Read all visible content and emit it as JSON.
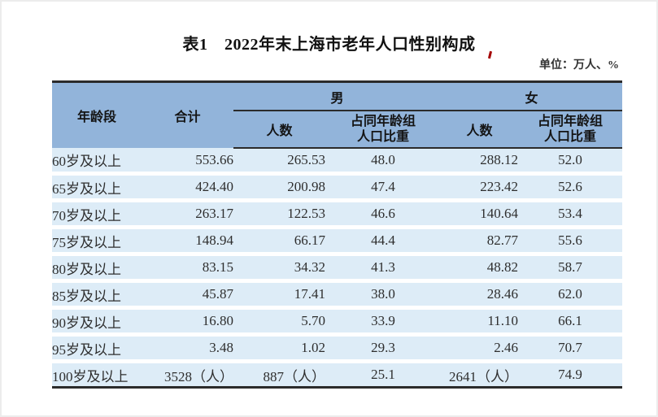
{
  "page": {
    "title": "表1　2022年末上海市老年人口性别构成",
    "unit_note": "单位：万人、%"
  },
  "table": {
    "header": {
      "age_group": "年龄段",
      "total": "合计",
      "male": "男",
      "female": "女",
      "male_count": "人数",
      "male_share": "占同年龄组\n人口比重",
      "female_count": "人数",
      "female_share": "占同年龄组\n人口比重"
    },
    "rows": [
      {
        "age": "60岁及以上",
        "total": "553.66",
        "m_count": "265.53",
        "m_share": "48.0",
        "f_count": "288.12",
        "f_share": "52.0"
      },
      {
        "age": "65岁及以上",
        "total": "424.40",
        "m_count": "200.98",
        "m_share": "47.4",
        "f_count": "223.42",
        "f_share": "52.6"
      },
      {
        "age": "70岁及以上",
        "total": "263.17",
        "m_count": "122.53",
        "m_share": "46.6",
        "f_count": "140.64",
        "f_share": "53.4"
      },
      {
        "age": "75岁及以上",
        "total": "148.94",
        "m_count": "66.17",
        "m_share": "44.4",
        "f_count": "82.77",
        "f_share": "55.6"
      },
      {
        "age": "80岁及以上",
        "total": "83.15",
        "m_count": "34.32",
        "m_share": "41.3",
        "f_count": "48.82",
        "f_share": "58.7"
      },
      {
        "age": "85岁及以上",
        "total": "45.87",
        "m_count": "17.41",
        "m_share": "38.0",
        "f_count": "28.46",
        "f_share": "62.0"
      },
      {
        "age": "90岁及以上",
        "total": "16.80",
        "m_count": "5.70",
        "m_share": "33.9",
        "f_count": "11.10",
        "f_share": "66.1"
      },
      {
        "age": "95岁及以上",
        "total": "3.48",
        "m_count": "1.02",
        "m_share": "29.3",
        "f_count": "2.46",
        "f_share": "70.7"
      },
      {
        "age": "100岁及以上",
        "total": "3528（人）",
        "m_count": "887（人）",
        "m_share": "25.1",
        "f_count": "2641（人）",
        "f_share": "74.9"
      }
    ]
  },
  "colors": {
    "header_bg": "#92b4da",
    "row_bg": "#ddecf7",
    "border_dark": "#2b2b2b",
    "accent_red": "#a40000",
    "page_border": "#ececec"
  }
}
